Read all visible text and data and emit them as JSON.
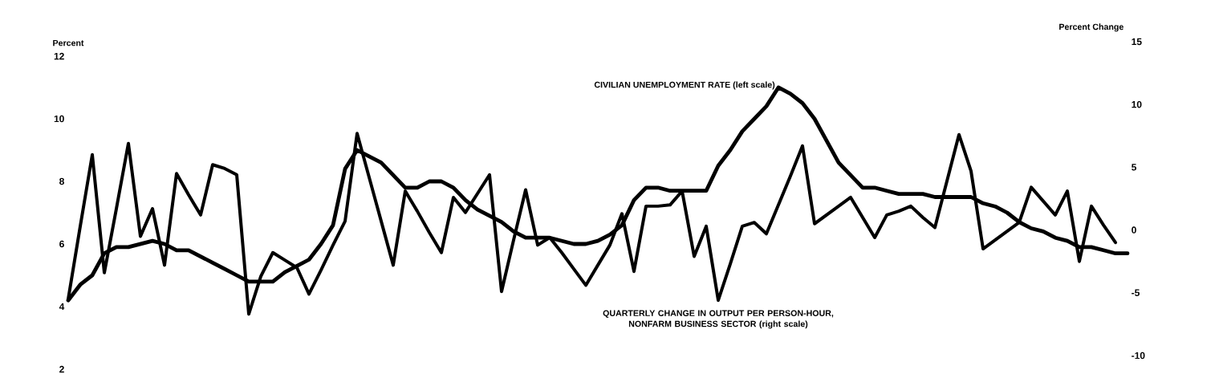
{
  "chart_data": {
    "type": "line",
    "ylabel": "Percent",
    "y2label": "Percent Change",
    "tick_labels": "y",
    "categories": [
      null,
      null,
      null,
      null,
      null,
      null,
      null,
      null,
      null,
      null,
      null,
      null,
      null,
      null,
      null,
      null,
      null,
      null,
      null,
      null,
      null,
      null,
      null,
      null,
      null,
      null,
      null,
      null,
      null,
      null,
      null,
      null,
      null,
      null,
      null,
      null,
      null,
      null,
      null,
      null,
      null,
      null,
      null,
      null,
      null,
      null,
      null,
      null,
      null,
      null,
      null,
      null,
      null,
      null,
      null,
      null,
      null,
      null,
      null,
      null,
      null,
      null,
      null,
      null,
      null,
      null,
      null,
      null,
      null,
      null,
      null,
      null,
      null,
      null,
      null,
      null,
      null,
      null,
      null,
      null,
      null,
      null,
      null,
      null,
      null,
      null,
      null,
      null,
      null
    ],
    "ylim": [
      2,
      12
    ],
    "yticks": [
      2,
      4,
      6,
      8,
      10,
      12
    ],
    "y2lim": [
      -10,
      15
    ],
    "y2ticks": [
      -10,
      -5,
      0,
      5,
      10,
      15
    ],
    "series": [
      {
        "name": "CIVILIAN UNEMPLOYMENT RATE (left scale)",
        "color": "#000000",
        "values": [
          4.2,
          4.7,
          5.0,
          5.7,
          5.9,
          5.9,
          6.0,
          6.1,
          6.0,
          5.8,
          5.8,
          5.6,
          5.4,
          5.2,
          5.0,
          4.8,
          4.8,
          4.8,
          5.1,
          5.3,
          5.5,
          6.0,
          6.6,
          8.4,
          9.0,
          8.8,
          8.6,
          8.2,
          7.8,
          7.8,
          8.0,
          8.0,
          7.8,
          7.4,
          7.1,
          6.9,
          6.7,
          6.4,
          6.2,
          6.2,
          6.2,
          6.1,
          6.0,
          6.0,
          6.1,
          6.3,
          6.6,
          7.4,
          7.8,
          7.8,
          7.7,
          7.7,
          7.7,
          7.7,
          8.5,
          9.0,
          9.6,
          10.0,
          10.4,
          11.0,
          10.8,
          10.5,
          10.0,
          9.3,
          8.6,
          8.2,
          7.8,
          7.8,
          7.7,
          7.6,
          7.6,
          7.6,
          7.5,
          7.5,
          7.5,
          7.5,
          7.3,
          7.2,
          7.0,
          6.7,
          6.5,
          6.4,
          6.2,
          6.1,
          5.9,
          5.9,
          5.8,
          5.7,
          5.7
        ]
      },
      {
        "name": "QUARTERLY CHANGE IN OUTPUT PER PERSON-HOUR, NONFARM BUSINESS SECTOR (right scale)",
        "color": "#000000",
        "axis": "y2",
        "values": [
          -5.5,
          0.3,
          6.0,
          -3.4,
          1.7,
          6.9,
          -0.5,
          1.7,
          -2.8,
          4.5,
          2.8,
          1.2,
          5.2,
          4.9,
          4.4,
          -6.7,
          -3.7,
          -1.8,
          -2.4,
          -3.0,
          -5.1,
          -3.2,
          -1.2,
          0.7,
          7.7,
          4.2,
          0.7,
          -2.8,
          3.1,
          1.5,
          -0.2,
          -1.8,
          2.6,
          1.4,
          2.9,
          4.4,
          -4.9,
          -0.8,
          3.2,
          -1.2,
          -0.6,
          -1.8,
          -3.1,
          -4.4,
          -2.8,
          -1.2,
          1.3,
          -3.3,
          1.9,
          1.9,
          2.0,
          3.1,
          -2.1,
          0.3,
          -5.6,
          -2.7,
          0.3,
          0.6,
          -0.3,
          2.0,
          4.3,
          6.7,
          0.5,
          1.2,
          1.9,
          2.6,
          1.0,
          -0.6,
          1.2,
          1.5,
          1.9,
          1.0,
          0.2,
          3.9,
          7.6,
          4.7,
          -1.5,
          -0.8,
          -0.1,
          0.6,
          3.4,
          2.3,
          1.2,
          3.1,
          -2.5,
          1.9,
          0.4,
          -1.0,
          null
        ]
      }
    ]
  }
}
